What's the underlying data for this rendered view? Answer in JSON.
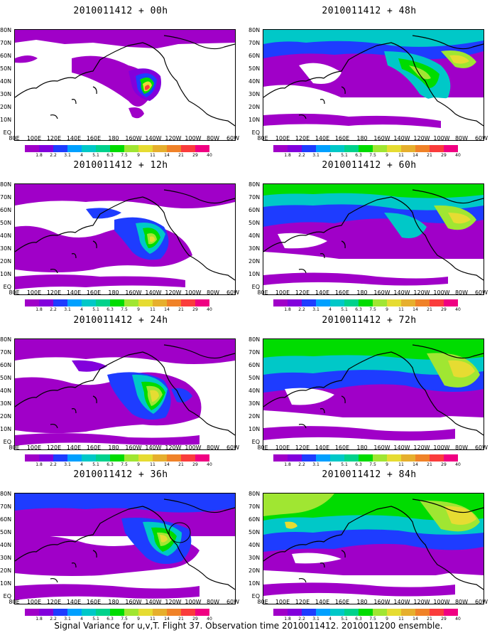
{
  "caption": "Signal Variance for u,v,T. Flight 37. Observation time 2010011412. 2010011200 ensemble.",
  "panels": [
    {
      "title": "2010011412 + 00h",
      "x_labels": [
        "80E",
        "100E",
        "120E",
        "140E",
        "160E",
        "180",
        "160W",
        "140W",
        "120W",
        "100W",
        "80W",
        "60W"
      ],
      "y_labels": [
        "80N",
        "70N",
        "60N",
        "50N",
        "40N",
        "30N",
        "20N",
        "10N",
        "EQ"
      ],
      "colorbar_labels": [
        "1.8",
        "2.2",
        "3.1",
        "4",
        "5.1",
        "6.3",
        "7.5",
        "9",
        "11",
        "14",
        "21",
        "29",
        "40"
      ]
    },
    {
      "title": "2010011412 + 48h",
      "x_labels": [
        "80E",
        "100E",
        "120E",
        "140E",
        "160E",
        "180",
        "160W",
        "140W",
        "120W",
        "100W",
        "80W",
        "60W"
      ],
      "y_labels": [
        "80N",
        "70N",
        "60N",
        "50N",
        "40N",
        "30N",
        "20N",
        "10N",
        "EQ"
      ],
      "colorbar_labels": [
        "1.8",
        "2.2",
        "3.1",
        "4",
        "5.1",
        "6.3",
        "7.5",
        "9",
        "11",
        "14",
        "21",
        "29",
        "40"
      ]
    },
    {
      "title": "2010011412 + 12h",
      "x_labels": [
        "80E",
        "100E",
        "120E",
        "140E",
        "160E",
        "180",
        "160W",
        "140W",
        "120W",
        "100W",
        "80W",
        "60W"
      ],
      "y_labels": [
        "80N",
        "70N",
        "60N",
        "50N",
        "40N",
        "30N",
        "20N",
        "10N",
        "EQ"
      ],
      "colorbar_labels": [
        "1.8",
        "2.2",
        "3.1",
        "4",
        "5.1",
        "6.3",
        "7.5",
        "9",
        "11",
        "14",
        "21",
        "29",
        "40"
      ]
    },
    {
      "title": "2010011412 + 60h",
      "x_labels": [
        "80E",
        "100E",
        "120E",
        "140E",
        "160E",
        "180",
        "160W",
        "140W",
        "120W",
        "100W",
        "80W",
        "60W"
      ],
      "y_labels": [
        "80N",
        "70N",
        "60N",
        "50N",
        "40N",
        "30N",
        "20N",
        "10N",
        "EQ"
      ],
      "colorbar_labels": [
        "1.8",
        "2.2",
        "3.1",
        "4",
        "5.1",
        "6.3",
        "7.5",
        "9",
        "11",
        "14",
        "21",
        "29",
        "40"
      ]
    },
    {
      "title": "2010011412 + 24h",
      "x_labels": [
        "80E",
        "100E",
        "120E",
        "140E",
        "160E",
        "180",
        "160W",
        "140W",
        "120W",
        "100W",
        "80W",
        "60W"
      ],
      "y_labels": [
        "80N",
        "70N",
        "60N",
        "50N",
        "40N",
        "30N",
        "20N",
        "10N",
        "EQ"
      ],
      "colorbar_labels": [
        "1.8",
        "2.2",
        "3.1",
        "4",
        "5.1",
        "6.3",
        "7.5",
        "9",
        "11",
        "14",
        "21",
        "29",
        "40"
      ]
    },
    {
      "title": "2010011412 + 72h",
      "x_labels": [
        "80E",
        "100E",
        "120E",
        "140E",
        "160E",
        "180",
        "160W",
        "140W",
        "120W",
        "100W",
        "80W",
        "60W"
      ],
      "y_labels": [
        "80N",
        "70N",
        "60N",
        "50N",
        "40N",
        "30N",
        "20N",
        "10N",
        "EQ"
      ],
      "colorbar_labels": [
        "1.8",
        "2.2",
        "3.1",
        "4",
        "5.1",
        "6.3",
        "7.5",
        "9",
        "11",
        "14",
        "21",
        "29",
        "40"
      ]
    },
    {
      "title": "2010011412 + 36h",
      "x_labels": [
        "80E",
        "100E",
        "120E",
        "140E",
        "160E",
        "180",
        "160W",
        "140W",
        "120W",
        "100W",
        "80W",
        "60W"
      ],
      "y_labels": [
        "80N",
        "70N",
        "60N",
        "50N",
        "40N",
        "30N",
        "20N",
        "10N",
        "EQ"
      ],
      "colorbar_labels": [
        "1.8",
        "2.2",
        "3.1",
        "4",
        "5.1",
        "6.3",
        "7.5",
        "9",
        "11",
        "14",
        "21",
        "29",
        "40"
      ]
    },
    {
      "title": "2010011412 + 84h",
      "x_labels": [
        "80E",
        "100E",
        "120E",
        "140E",
        "160E",
        "180",
        "160W",
        "140W",
        "120W",
        "100W",
        "80W",
        "60W"
      ],
      "y_labels": [
        "80N",
        "70N",
        "60N",
        "50N",
        "40N",
        "30N",
        "20N",
        "10N",
        "EQ"
      ],
      "colorbar_labels": [
        "1.8",
        "2.2",
        "3.1",
        "4",
        "5.1",
        "6.3",
        "7.5",
        "9",
        "11",
        "14",
        "21",
        "29",
        "40"
      ]
    }
  ],
  "colorbar_colors": [
    "#a000c8",
    "#8200dc",
    "#1e3cff",
    "#00a0ff",
    "#00c8c8",
    "#00d28c",
    "#00dc00",
    "#a0e632",
    "#e6dc32",
    "#e6af2d",
    "#f08228",
    "#fa3c3c",
    "#f00082"
  ]
}
